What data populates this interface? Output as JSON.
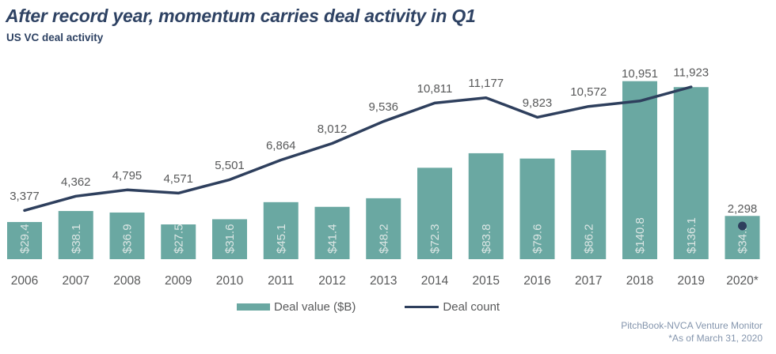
{
  "header": {
    "title": "After record year, momentum carries deal activity in Q1",
    "subtitle": "US VC deal activity"
  },
  "chart_data": {
    "type": "bar",
    "subtype": "combo-bar-line",
    "title": "US VC deal activity",
    "categories": [
      "2006",
      "2007",
      "2008",
      "2009",
      "2010",
      "2011",
      "2012",
      "2013",
      "2014",
      "2015",
      "2016",
      "2017",
      "2018",
      "2019",
      "2020*"
    ],
    "series": [
      {
        "name": "Deal value ($B)",
        "type": "bar",
        "color": "#6AA8A2",
        "values": [
          29.4,
          38.1,
          36.9,
          27.5,
          31.6,
          45.1,
          41.4,
          48.2,
          72.3,
          83.8,
          79.6,
          86.2,
          140.8,
          136.1,
          34.2
        ],
        "labels": [
          "$29.4",
          "$38.1",
          "$36.9",
          "$27.5",
          "$31.6",
          "$45.1",
          "$41.4",
          "$48.2",
          "$72.3",
          "$83.8",
          "$79.6",
          "$86.2",
          "$140.8",
          "$136.1",
          "$34.2"
        ]
      },
      {
        "name": "Deal count",
        "type": "line",
        "color": "#2E3F5D",
        "values": [
          3377,
          4362,
          4795,
          4571,
          5501,
          6864,
          8012,
          9536,
          10811,
          11177,
          9823,
          10572,
          10951,
          11923,
          2298
        ],
        "labels": [
          "3,377",
          "4,362",
          "4,795",
          "4,571",
          "5,501",
          "6,864",
          "8,012",
          "9,536",
          "10,811",
          "11,177",
          "9,823",
          "10,572",
          "10,951",
          "11,923",
          "2,298"
        ],
        "last_point_detached": true
      }
    ],
    "legend_position": "bottom",
    "grid": false,
    "value_axis_visible": false
  },
  "legend": {
    "deal_value_label": "Deal value ($B)",
    "deal_count_label": "Deal count"
  },
  "footer": {
    "source": "PitchBook-NVCA Venture Monitor",
    "as_of_note": "*As of March 31, 2020"
  },
  "colors": {
    "bar": "#6AA8A2",
    "line": "#2E3F5D",
    "title_text": "#2E4263",
    "axis_text": "#58595A",
    "bar_label_text": "#DCE6E4",
    "footer_text": "#8495AD"
  }
}
